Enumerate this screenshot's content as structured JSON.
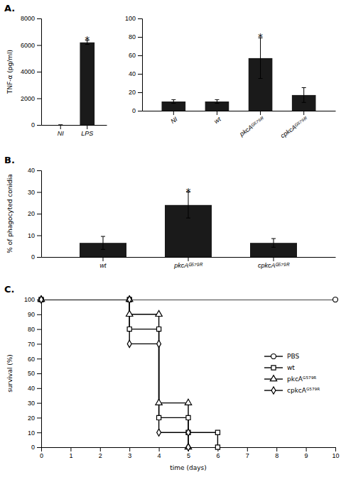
{
  "chart_data": [
    {
      "type": "bar",
      "title": "A.",
      "categories": [
        "NI",
        "LPS"
      ],
      "values": [
        0,
        6200
      ],
      "errors": [
        0,
        150
      ],
      "color": "#1a1a1a",
      "ylim": [
        0,
        8000
      ],
      "yticks": [
        0,
        2000,
        4000,
        6000,
        8000
      ],
      "ylabel": "TNF-α (pg/ml)",
      "annotations": [
        {
          "text": "*",
          "category": "LPS"
        }
      ]
    },
    {
      "type": "bar",
      "categories": [
        "NI",
        "wt",
        "pkcAᴳ⁵⁷⁹ᴿ",
        "cpkcAᴳ⁵⁷⁹ᴿ"
      ],
      "values": [
        10,
        10,
        57,
        17
      ],
      "errors": [
        2,
        2,
        22,
        8
      ],
      "color": "#1a1a1a",
      "ylim": [
        0,
        100
      ],
      "yticks": [
        0,
        20,
        40,
        60,
        80,
        100
      ],
      "annotations": [
        {
          "text": "*",
          "category": "pkcAᴳ⁵⁷⁹ᴿ"
        }
      ]
    },
    {
      "type": "bar",
      "title": "B.",
      "categories": [
        "wt",
        "pkcAᴳ⁵⁷⁹ᴿ",
        "cpkcAᴳ⁵⁷⁹ᴿ"
      ],
      "values": [
        6.5,
        24,
        6.5
      ],
      "errors": [
        3,
        6,
        2
      ],
      "color": "#1a1a1a",
      "ylim": [
        0,
        40
      ],
      "yticks": [
        0,
        10,
        20,
        30,
        40
      ],
      "ylabel": "% of phagocyted conidia",
      "annotations": [
        {
          "text": "*",
          "category": "pkcAᴳ⁵⁷⁹ᴿ"
        }
      ]
    },
    {
      "type": "line",
      "title": "C.",
      "series": [
        {
          "name": "PBS",
          "color": "#000000",
          "marker": "circle",
          "x": [
            0,
            10
          ],
          "values": [
            100,
            100
          ]
        },
        {
          "name": "wt",
          "color": "#000000",
          "marker": "square",
          "x": [
            0,
            3,
            3,
            4,
            4,
            5,
            5,
            6,
            6
          ],
          "values": [
            100,
            100,
            80,
            80,
            20,
            20,
            10,
            10,
            0
          ]
        },
        {
          "name": "pkcAᴳ⁵⁷⁹ᴿ",
          "color": "#000000",
          "marker": "triangle",
          "x": [
            0,
            3,
            3,
            4,
            4,
            5,
            5
          ],
          "values": [
            100,
            100,
            90,
            90,
            30,
            30,
            0
          ]
        },
        {
          "name": "cpkcAᴳ⁵⁷⁹ᴿ",
          "color": "#000000",
          "marker": "diamond",
          "x": [
            0,
            3,
            3,
            4,
            4,
            5,
            5
          ],
          "values": [
            100,
            100,
            70,
            70,
            10,
            10,
            0
          ]
        }
      ],
      "xlabel": "time (days)",
      "ylabel": "survival (%)",
      "xlim": [
        0,
        10
      ],
      "ylim": [
        0,
        100
      ],
      "xticks": [
        0,
        1,
        2,
        3,
        4,
        5,
        6,
        7,
        8,
        9,
        10
      ],
      "yticks": [
        0,
        10,
        20,
        30,
        40,
        50,
        60,
        70,
        80,
        90,
        100
      ],
      "legend": "right"
    }
  ]
}
